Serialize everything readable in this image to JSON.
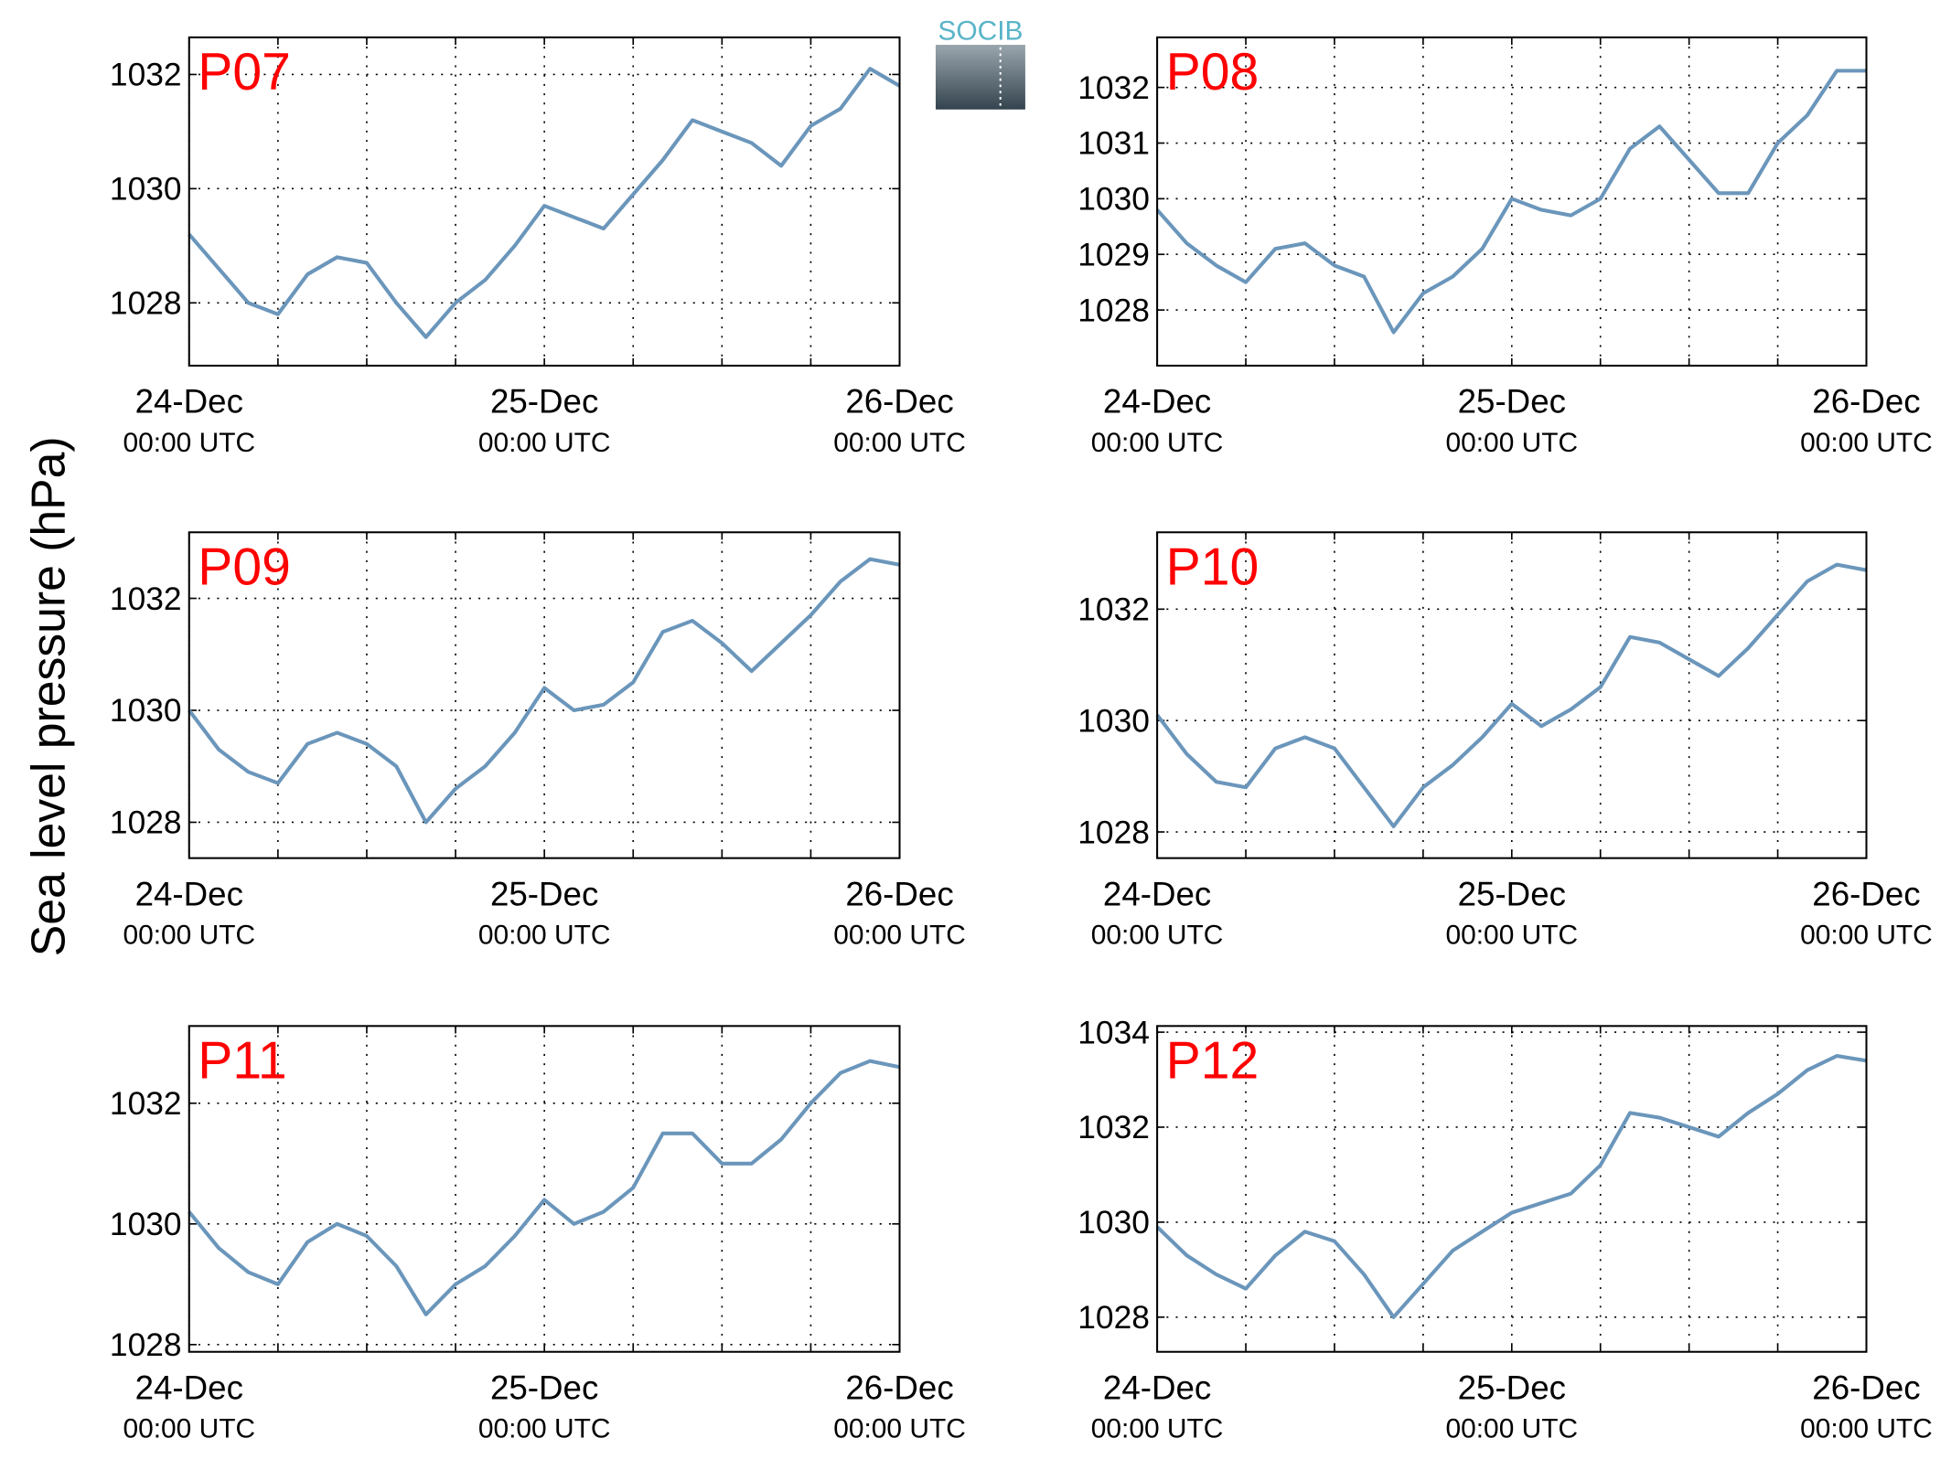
{
  "ylabel": "Sea level pressure (hPa)",
  "logo": "SOCIB",
  "chart_data": [
    {
      "type": "line",
      "title": "P07",
      "color": "#6b96bb",
      "x": [
        0,
        2,
        4,
        6,
        8,
        10,
        12,
        14,
        16,
        18,
        20,
        22,
        24,
        26,
        28,
        30,
        32,
        34,
        36,
        38,
        40,
        42,
        44,
        46,
        48
      ],
      "values": [
        1029.2,
        1028.6,
        1028.0,
        1027.8,
        1028.5,
        1028.8,
        1028.7,
        1028.0,
        1027.4,
        1028.0,
        1028.4,
        1029.0,
        1029.7,
        1029.5,
        1029.3,
        1029.9,
        1030.5,
        1031.2,
        1031.0,
        1030.8,
        1030.4,
        1031.1,
        1031.4,
        1032.1,
        1031.8
      ],
      "xlim": [
        0,
        48
      ],
      "xticks": [
        {
          "value": 0,
          "label": "24-Dec",
          "sublabel": "00:00 UTC"
        },
        {
          "value": 24,
          "label": "25-Dec",
          "sublabel": "00:00 UTC"
        },
        {
          "value": 48,
          "label": "26-Dec",
          "sublabel": "00:00 UTC"
        }
      ],
      "xgrid_minor": [
        6,
        12,
        18,
        30,
        36,
        42
      ],
      "ylim": [
        1026.9,
        1032.65
      ],
      "yticks": [
        1028,
        1030,
        1032
      ],
      "grid": true
    },
    {
      "type": "line",
      "title": "P08",
      "color": "#6b96bb",
      "x": [
        0,
        2,
        4,
        6,
        8,
        10,
        12,
        14,
        16,
        18,
        20,
        22,
        24,
        26,
        28,
        30,
        32,
        34,
        36,
        38,
        40,
        42,
        44,
        46,
        48
      ],
      "values": [
        1029.8,
        1029.2,
        1028.8,
        1028.5,
        1029.1,
        1029.2,
        1028.8,
        1028.6,
        1027.6,
        1028.3,
        1028.6,
        1029.1,
        1030.0,
        1029.8,
        1029.7,
        1030.0,
        1030.9,
        1031.3,
        1030.7,
        1030.1,
        1030.1,
        1031.0,
        1031.5,
        1032.3,
        1032.3
      ],
      "xlim": [
        0,
        48
      ],
      "xticks": [
        {
          "value": 0,
          "label": "24-Dec",
          "sublabel": "00:00 UTC"
        },
        {
          "value": 24,
          "label": "25-Dec",
          "sublabel": "00:00 UTC"
        },
        {
          "value": 48,
          "label": "26-Dec",
          "sublabel": "00:00 UTC"
        }
      ],
      "xgrid_minor": [
        6,
        12,
        18,
        30,
        36,
        42
      ],
      "ylim": [
        1027.0,
        1032.9
      ],
      "yticks": [
        1028,
        1029,
        1030,
        1031,
        1032
      ],
      "grid": true
    },
    {
      "type": "line",
      "title": "P09",
      "color": "#6b96bb",
      "x": [
        0,
        2,
        4,
        6,
        8,
        10,
        12,
        14,
        16,
        18,
        20,
        22,
        24,
        26,
        28,
        30,
        32,
        34,
        36,
        38,
        40,
        42,
        44,
        46,
        48
      ],
      "values": [
        1030.0,
        1029.3,
        1028.9,
        1028.7,
        1029.4,
        1029.6,
        1029.4,
        1029.0,
        1028.0,
        1028.6,
        1029.0,
        1029.6,
        1030.4,
        1030.0,
        1030.1,
        1030.5,
        1031.4,
        1031.6,
        1031.2,
        1030.7,
        1031.2,
        1031.7,
        1032.3,
        1032.7,
        1032.6
      ],
      "xlim": [
        0,
        48
      ],
      "xticks": [
        {
          "value": 0,
          "label": "24-Dec",
          "sublabel": "00:00 UTC"
        },
        {
          "value": 24,
          "label": "25-Dec",
          "sublabel": "00:00 UTC"
        },
        {
          "value": 48,
          "label": "26-Dec",
          "sublabel": "00:00 UTC"
        }
      ],
      "xgrid_minor": [
        6,
        12,
        18,
        30,
        36,
        42
      ],
      "ylim": [
        1027.36,
        1033.18
      ],
      "yticks": [
        1028,
        1030,
        1032
      ],
      "grid": true
    },
    {
      "type": "line",
      "title": "P10",
      "color": "#6b96bb",
      "x": [
        0,
        2,
        4,
        6,
        8,
        10,
        12,
        14,
        16,
        18,
        20,
        22,
        24,
        26,
        28,
        30,
        32,
        34,
        36,
        38,
        40,
        42,
        44,
        46,
        48
      ],
      "values": [
        1030.1,
        1029.4,
        1028.9,
        1028.8,
        1029.5,
        1029.7,
        1029.5,
        1028.8,
        1028.1,
        1028.8,
        1029.2,
        1029.7,
        1030.3,
        1029.9,
        1030.2,
        1030.6,
        1031.5,
        1031.4,
        1031.1,
        1030.8,
        1031.3,
        1031.9,
        1032.5,
        1032.8,
        1032.7
      ],
      "xlim": [
        0,
        48
      ],
      "xticks": [
        {
          "value": 0,
          "label": "24-Dec",
          "sublabel": "00:00 UTC"
        },
        {
          "value": 24,
          "label": "25-Dec",
          "sublabel": "00:00 UTC"
        },
        {
          "value": 48,
          "label": "26-Dec",
          "sublabel": "00:00 UTC"
        }
      ],
      "xgrid_minor": [
        6,
        12,
        18,
        30,
        36,
        42
      ],
      "ylim": [
        1027.53,
        1033.38
      ],
      "yticks": [
        1028,
        1030,
        1032
      ],
      "grid": true
    },
    {
      "type": "line",
      "title": "P11",
      "color": "#6b96bb",
      "x": [
        0,
        2,
        4,
        6,
        8,
        10,
        12,
        14,
        16,
        18,
        20,
        22,
        24,
        26,
        28,
        30,
        32,
        34,
        36,
        38,
        40,
        42,
        44,
        46,
        48
      ],
      "values": [
        1030.2,
        1029.6,
        1029.2,
        1029.0,
        1029.7,
        1030.0,
        1029.8,
        1029.3,
        1028.5,
        1029.0,
        1029.3,
        1029.8,
        1030.4,
        1030.0,
        1030.2,
        1030.6,
        1031.5,
        1031.5,
        1031.0,
        1031.0,
        1031.4,
        1032.0,
        1032.5,
        1032.7,
        1032.6
      ],
      "xlim": [
        0,
        48
      ],
      "xticks": [
        {
          "value": 0,
          "label": "24-Dec",
          "sublabel": "00:00 UTC"
        },
        {
          "value": 24,
          "label": "25-Dec",
          "sublabel": "00:00 UTC"
        },
        {
          "value": 48,
          "label": "26-Dec",
          "sublabel": "00:00 UTC"
        }
      ],
      "xgrid_minor": [
        6,
        12,
        18,
        30,
        36,
        42
      ],
      "ylim": [
        1027.88,
        1033.28
      ],
      "yticks": [
        1028,
        1030,
        1032
      ],
      "grid": true
    },
    {
      "type": "line",
      "title": "P12",
      "color": "#6b96bb",
      "x": [
        0,
        2,
        4,
        6,
        8,
        10,
        12,
        14,
        16,
        18,
        20,
        22,
        24,
        26,
        28,
        30,
        32,
        34,
        36,
        38,
        40,
        42,
        44,
        46,
        48
      ],
      "values": [
        1029.9,
        1029.3,
        1028.9,
        1028.6,
        1029.3,
        1029.8,
        1029.6,
        1028.9,
        1028.0,
        1028.7,
        1029.4,
        1029.8,
        1030.2,
        1030.4,
        1030.6,
        1031.2,
        1032.3,
        1032.2,
        1032.0,
        1031.8,
        1032.3,
        1032.7,
        1033.2,
        1033.5,
        1033.4
      ],
      "xlim": [
        0,
        48
      ],
      "xticks": [
        {
          "value": 0,
          "label": "24-Dec",
          "sublabel": "00:00 UTC"
        },
        {
          "value": 24,
          "label": "25-Dec",
          "sublabel": "00:00 UTC"
        },
        {
          "value": 48,
          "label": "26-Dec",
          "sublabel": "00:00 UTC"
        }
      ],
      "xgrid_minor": [
        6,
        12,
        18,
        30,
        36,
        42
      ],
      "ylim": [
        1027.27,
        1034.13
      ],
      "yticks": [
        1028,
        1030,
        1032,
        1034
      ],
      "grid": true
    }
  ]
}
